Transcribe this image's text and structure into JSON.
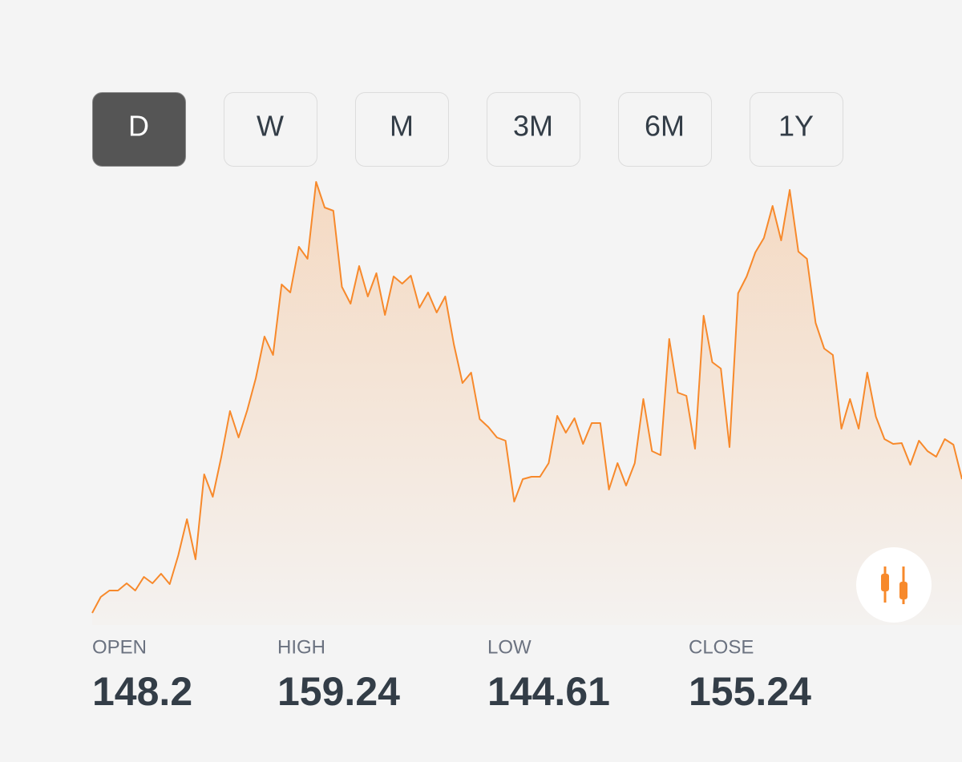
{
  "tabs": [
    {
      "label": "D",
      "selected": true
    },
    {
      "label": "W",
      "selected": false
    },
    {
      "label": "M",
      "selected": false
    },
    {
      "label": "3M",
      "selected": false
    },
    {
      "label": "6M",
      "selected": false
    },
    {
      "label": "1Y",
      "selected": false
    }
  ],
  "chart_data": {
    "type": "area",
    "color": "#f7892b",
    "values": [
      15,
      35,
      43,
      43,
      52,
      43,
      60,
      52,
      64,
      51,
      87,
      132,
      82,
      188,
      160,
      210,
      267,
      234,
      268,
      308,
      360,
      337,
      425,
      415,
      472,
      457,
      553,
      521,
      517,
      422,
      401,
      448,
      410,
      439,
      387,
      435,
      426,
      436,
      396,
      415,
      390,
      410,
      350,
      302,
      315,
      257,
      247,
      234,
      230,
      154,
      182,
      185,
      185,
      202,
      261,
      240,
      258,
      226,
      252,
      252,
      169,
      202,
      174,
      202,
      282,
      217,
      212,
      357,
      290,
      286,
      220,
      386,
      328,
      320,
      222,
      414,
      435,
      465,
      483,
      523,
      480,
      543,
      466,
      457,
      377,
      345,
      337,
      245,
      282,
      245,
      315,
      260,
      232,
      226,
      227,
      200,
      230,
      217,
      210,
      232,
      225,
      182
    ]
  },
  "stats": [
    {
      "label": "OPEN",
      "value": 148.2
    },
    {
      "label": "HIGH",
      "value": 159.24
    },
    {
      "label": "LOW",
      "value": 144.61
    },
    {
      "label": "CLOSE",
      "value": 155.24
    }
  ]
}
